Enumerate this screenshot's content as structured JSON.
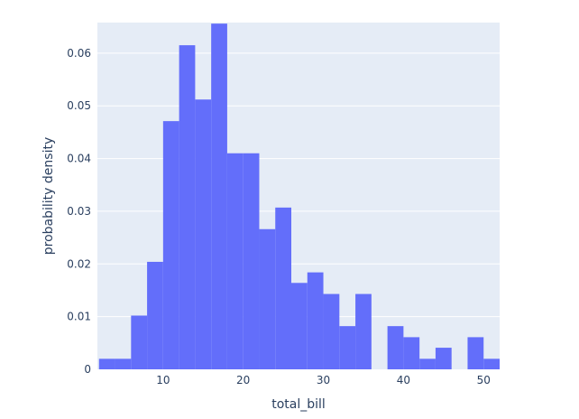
{
  "colors": {
    "plot_bg": "#e5ecf6",
    "page_bg": "#ffffff",
    "grid": "#ffffff",
    "bar": "#636efa",
    "text": "#2a3f5f"
  },
  "chart_data": {
    "type": "bar",
    "histnorm": "probability density",
    "title": "",
    "xlabel": "total_bill",
    "ylabel": "probability density",
    "xlim": [
      1.8,
      52.0
    ],
    "ylim": [
      0,
      0.0658
    ],
    "xticks": [
      10,
      20,
      30,
      40,
      50
    ],
    "yticks": [
      0,
      0.01,
      0.02,
      0.03,
      0.04,
      0.05,
      0.06
    ],
    "xtick_labels": [
      "10",
      "20",
      "30",
      "40",
      "50"
    ],
    "ytick_labels": [
      "0",
      "0.01",
      "0.02",
      "0.03",
      "0.04",
      "0.05",
      "0.06"
    ],
    "bin_width": 2,
    "grid": true,
    "bins": [
      {
        "x0": 2,
        "x1": 4,
        "y": 0.002
      },
      {
        "x0": 4,
        "x1": 6,
        "y": 0.002
      },
      {
        "x0": 6,
        "x1": 8,
        "y": 0.0102
      },
      {
        "x0": 8,
        "x1": 10,
        "y": 0.0204
      },
      {
        "x0": 10,
        "x1": 12,
        "y": 0.0471
      },
      {
        "x0": 12,
        "x1": 14,
        "y": 0.0615
      },
      {
        "x0": 14,
        "x1": 16,
        "y": 0.0512
      },
      {
        "x0": 16,
        "x1": 18,
        "y": 0.0656
      },
      {
        "x0": 18,
        "x1": 20,
        "y": 0.041
      },
      {
        "x0": 20,
        "x1": 22,
        "y": 0.041
      },
      {
        "x0": 22,
        "x1": 24,
        "y": 0.0266
      },
      {
        "x0": 24,
        "x1": 26,
        "y": 0.0307
      },
      {
        "x0": 26,
        "x1": 28,
        "y": 0.0164
      },
      {
        "x0": 28,
        "x1": 30,
        "y": 0.0184
      },
      {
        "x0": 30,
        "x1": 32,
        "y": 0.0143
      },
      {
        "x0": 32,
        "x1": 34,
        "y": 0.0082
      },
      {
        "x0": 34,
        "x1": 36,
        "y": 0.0143
      },
      {
        "x0": 36,
        "x1": 38,
        "y": 0
      },
      {
        "x0": 38,
        "x1": 40,
        "y": 0.0082
      },
      {
        "x0": 40,
        "x1": 42,
        "y": 0.0061
      },
      {
        "x0": 42,
        "x1": 44,
        "y": 0.002
      },
      {
        "x0": 44,
        "x1": 46,
        "y": 0.0041
      },
      {
        "x0": 46,
        "x1": 48,
        "y": 0
      },
      {
        "x0": 48,
        "x1": 50,
        "y": 0.0061
      },
      {
        "x0": 50,
        "x1": 52,
        "y": 0.002
      }
    ]
  }
}
